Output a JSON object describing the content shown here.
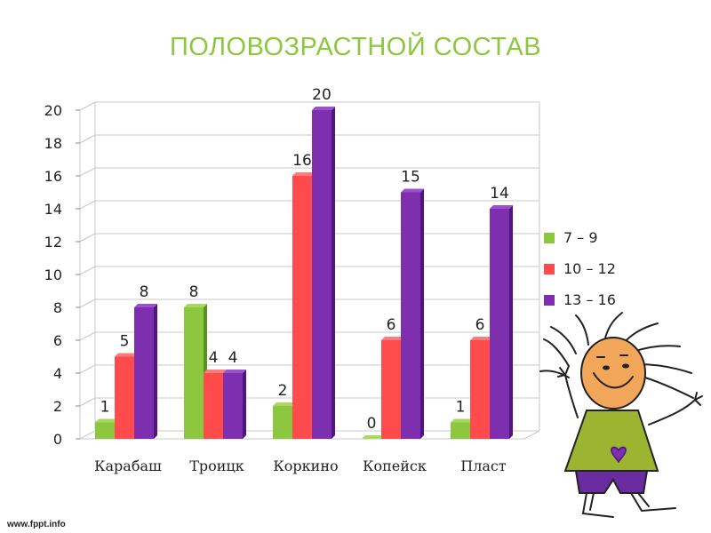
{
  "slide": {
    "footer_text": "www.fppt.info"
  },
  "chart_data": {
    "type": "bar",
    "title": "ПОЛОВОЗРАСТНОЙ СОСТАВ",
    "categories": [
      "Карабаш",
      "Троицк",
      "Коркино",
      "Копейск",
      "Пласт"
    ],
    "series": [
      {
        "name": "7 – 9",
        "values": [
          1,
          8,
          2,
          0,
          1
        ]
      },
      {
        "name": "10 – 12",
        "values": [
          5,
          4,
          16,
          6,
          6
        ]
      },
      {
        "name": "13 – 16",
        "values": [
          8,
          4,
          20,
          15,
          14
        ]
      }
    ],
    "ylim": [
      0,
      20
    ],
    "yticks": [
      "0",
      "2",
      "4",
      "6",
      "8",
      "10",
      "12",
      "14",
      "16",
      "18",
      "20"
    ],
    "grid": true,
    "legend_position": "right",
    "colors": {
      "title": "#8dc63f",
      "series": [
        "#8dc63f",
        "#ff4b4b",
        "#7d2fb0"
      ],
      "series_dark": [
        "#5e8f24",
        "#c42828",
        "#4f1680"
      ],
      "series_top": [
        "#a6d95e",
        "#ff7a7a",
        "#9a52cc"
      ],
      "grid": "#c8c8c8",
      "text": "#222222"
    },
    "decoration": "cartoon-girl-illustration"
  }
}
